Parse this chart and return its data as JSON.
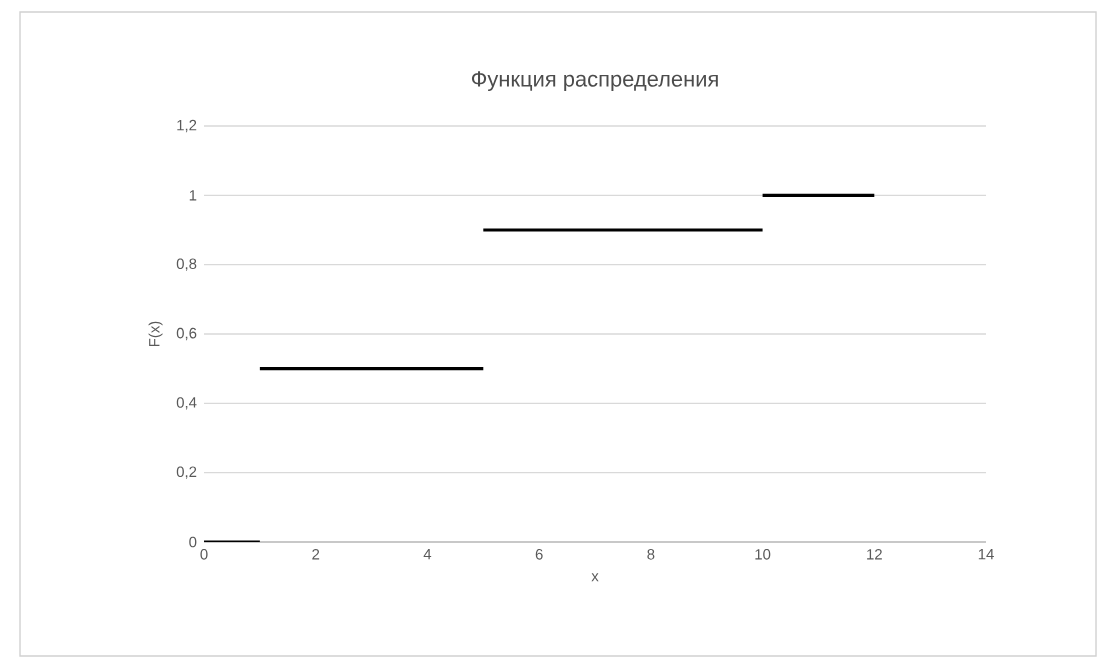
{
  "chart_data": {
    "type": "line",
    "title": "Функция распределения",
    "xlabel": "x",
    "ylabel": "F(x)",
    "series": [
      {
        "color": "#000000",
        "x": [
          0,
          1
        ],
        "values": [
          0,
          0
        ]
      },
      {
        "color": "#000000",
        "x": [
          1,
          5
        ],
        "values": [
          0.5,
          0.5
        ]
      },
      {
        "color": "#000000",
        "x": [
          5,
          10
        ],
        "values": [
          0.9,
          0.9
        ]
      },
      {
        "color": "#000000",
        "x": [
          10,
          12
        ],
        "values": [
          1,
          1
        ]
      }
    ],
    "xlim": [
      0,
      14
    ],
    "xticks": [
      0,
      2,
      4,
      6,
      8,
      10,
      12,
      14
    ],
    "ylim": [
      0,
      1.2
    ],
    "yticks": [
      0,
      {
        "value": 0.2,
        "label": "0,2"
      },
      {
        "value": 0.4,
        "label": "0,4"
      },
      {
        "value": 0.6,
        "label": "0,6"
      },
      {
        "value": 0.8,
        "label": "0,8"
      },
      1,
      {
        "value": 1.2,
        "label": "1,2"
      }
    ],
    "grid": "y",
    "marker": "none",
    "line_style": "solid"
  }
}
